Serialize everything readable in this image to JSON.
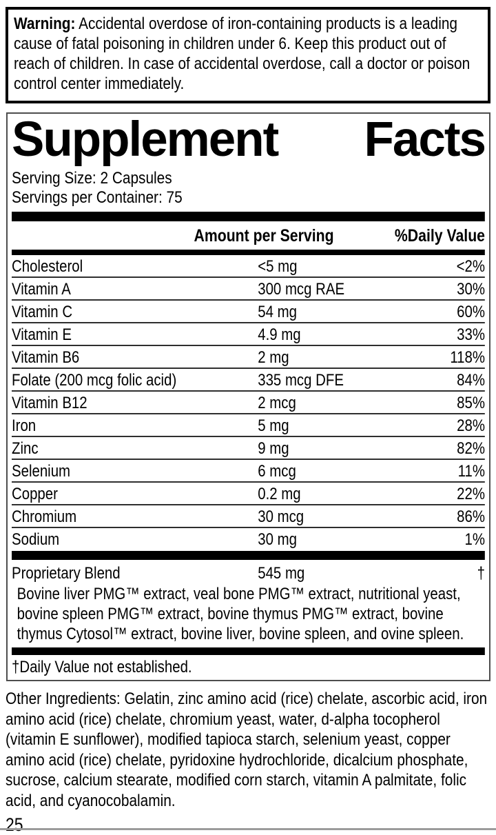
{
  "warning": {
    "label": "Warning:",
    "text": " Accidental overdose of iron-containing products is a leading cause of fatal poisoning in children under 6. Keep this product out of reach of children. In case of accidental overdose, call a doctor or poison control center immediately."
  },
  "panel": {
    "title": {
      "left": "Supplement",
      "right": "Facts"
    },
    "serving_size": "Serving Size: 2 Capsules",
    "servings_per_container": "Servings per Container: 75",
    "columns": {
      "amount": "Amount per Serving",
      "daily_value": "%Daily Value"
    },
    "rows": [
      {
        "name": "Cholesterol",
        "amount": "<5 mg",
        "dv": "<2%"
      },
      {
        "name": "Vitamin A",
        "amount": "300 mcg RAE",
        "dv": "30%"
      },
      {
        "name": "Vitamin C",
        "amount": "54 mg",
        "dv": "60%"
      },
      {
        "name": "Vitamin E",
        "amount": "4.9 mg",
        "dv": "33%"
      },
      {
        "name": "Vitamin B6",
        "amount": "2 mg",
        "dv": "118%"
      },
      {
        "name": "Folate (200 mcg folic acid)",
        "amount": "335 mcg DFE",
        "dv": "84%"
      },
      {
        "name": "Vitamin B12",
        "amount": "2 mcg",
        "dv": "85%"
      },
      {
        "name": "Iron",
        "amount": "5 mg",
        "dv": "28%"
      },
      {
        "name": "Zinc",
        "amount": "9 mg",
        "dv": "82%"
      },
      {
        "name": "Selenium",
        "amount": "6 mcg",
        "dv": "11%"
      },
      {
        "name": "Copper",
        "amount": "0.2 mg",
        "dv": "22%"
      },
      {
        "name": "Chromium",
        "amount": "30 mcg",
        "dv": "86%"
      },
      {
        "name": "Sodium",
        "amount": "30 mg",
        "dv": "1%"
      }
    ],
    "proprietary_blend": {
      "name": "Proprietary Blend",
      "amount": "545 mg",
      "dv": "†",
      "description": "Bovine liver PMG™ extract, veal bone PMG™ extract, nutritional yeast, bovine spleen PMG™ extract, bovine thymus PMG™ extract, bovine thymus Cytosol™ extract, bovine liver, bovine spleen, and ovine spleen."
    },
    "footnote": "†Daily Value not established."
  },
  "other_ingredients": "Other Ingredients: Gelatin, zinc amino acid (rice) chelate, ascorbic acid, iron amino acid (rice) chelate, chromium yeast, water, d-alpha tocopherol (vitamin E sunflower), modified tapioca starch, selenium yeast, copper amino acid (rice) chelate, pyridoxine hydrochloride, dicalcium phosphate, sucrose, calcium stearate, modified corn starch, vitamin A palmitate, folic acid, and cyanocobalamin.",
  "page_number": "25",
  "colors": {
    "text": "#000000",
    "background": "#ffffff",
    "panel_border": "#4d4d4d",
    "row_separator": "#2e2e2e",
    "bottom_rule": "#9b9b9b"
  }
}
